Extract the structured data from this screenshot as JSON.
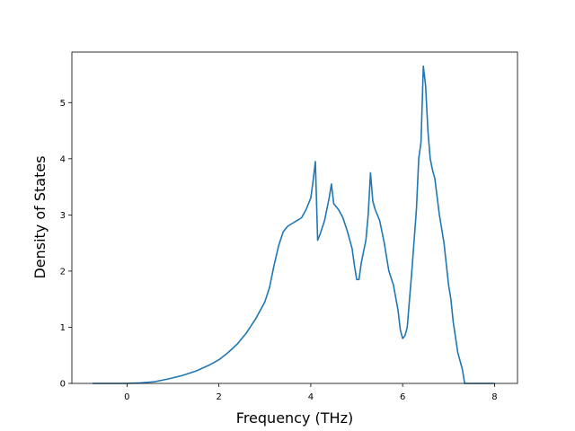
{
  "chart_data": {
    "type": "line",
    "title": "",
    "xlabel": "Frequency (THz)",
    "ylabel": "Density of States",
    "xlim": [
      -1.2,
      8.5
    ],
    "ylim": [
      0,
      5.9
    ],
    "xticks": [
      0,
      2,
      4,
      6,
      8
    ],
    "yticks": [
      0,
      1,
      2,
      3,
      4,
      5
    ],
    "grid": false,
    "legend": "none",
    "line_color": "#1f77b4",
    "series": [
      {
        "x": [
          -0.75,
          -0.5,
          0.0,
          0.3,
          0.6,
          0.9,
          1.2,
          1.5,
          1.8,
          2.0,
          2.2,
          2.4,
          2.6,
          2.8,
          3.0,
          3.1,
          3.2,
          3.3,
          3.4,
          3.5,
          3.6,
          3.7,
          3.8,
          3.9,
          4.0,
          4.05,
          4.1,
          4.15,
          4.2,
          4.3,
          4.4,
          4.45,
          4.5,
          4.6,
          4.7,
          4.8,
          4.9,
          4.95,
          5.0,
          5.05,
          5.1,
          5.2,
          5.25,
          5.3,
          5.35,
          5.4,
          5.5,
          5.6,
          5.7,
          5.8,
          5.9,
          5.95,
          6.0,
          6.05,
          6.1,
          6.15,
          6.2,
          6.3,
          6.35,
          6.4,
          6.45,
          6.5,
          6.55,
          6.6,
          6.65,
          6.7,
          6.8,
          6.9,
          7.0,
          7.05,
          7.1,
          7.2,
          7.3,
          7.35,
          7.5,
          8.0
        ],
        "y": [
          0.0,
          0.0,
          0.0,
          0.01,
          0.03,
          0.08,
          0.14,
          0.22,
          0.33,
          0.42,
          0.55,
          0.7,
          0.9,
          1.15,
          1.45,
          1.7,
          2.1,
          2.45,
          2.7,
          2.8,
          2.85,
          2.9,
          2.95,
          3.1,
          3.3,
          3.6,
          3.95,
          2.55,
          2.65,
          2.9,
          3.3,
          3.55,
          3.2,
          3.1,
          2.95,
          2.7,
          2.4,
          2.1,
          1.85,
          1.85,
          2.15,
          2.55,
          3.0,
          3.75,
          3.25,
          3.1,
          2.9,
          2.5,
          2.0,
          1.75,
          1.3,
          0.95,
          0.8,
          0.85,
          1.0,
          1.5,
          2.0,
          3.1,
          4.0,
          4.3,
          5.65,
          5.3,
          4.5,
          4.0,
          3.8,
          3.65,
          3.0,
          2.5,
          1.75,
          1.5,
          1.1,
          0.55,
          0.25,
          0.0,
          0.0,
          0.0
        ]
      }
    ]
  }
}
